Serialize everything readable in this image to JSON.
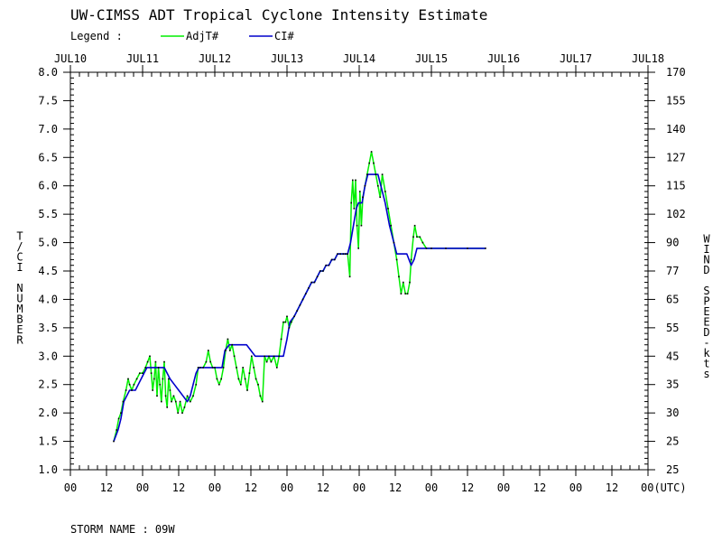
{
  "chart_data": {
    "type": "line",
    "title": "UW-CIMSS ADT Tropical Cyclone Intensity Estimate",
    "legend_label": "Legend :",
    "ylabel": "T/CI NUMBER",
    "ylabel_right": "WIND SPEED-kts",
    "storm_label": "STORM NAME : 09W",
    "xlim": [
      0,
      8
    ],
    "ylim": [
      1.0,
      8.0
    ],
    "top_ticks": [
      "JUL10",
      "JUL11",
      "JUL12",
      "JUL13",
      "JUL14",
      "JUL15",
      "JUL16",
      "JUL17",
      "JUL18"
    ],
    "bottom_ticks": [
      "00",
      "12",
      "00",
      "12",
      "00",
      "12",
      "00",
      "12",
      "00",
      "12",
      "00",
      "12",
      "00",
      "12",
      "00",
      "12",
      "00(UTC)"
    ],
    "left_ticks": [
      "1.0",
      "1.5",
      "2.0",
      "2.5",
      "3.0",
      "3.5",
      "4.0",
      "4.5",
      "5.0",
      "5.5",
      "6.0",
      "6.5",
      "7.0",
      "7.5",
      "8.0"
    ],
    "right_ticks": [
      "25",
      "25",
      "30",
      "35",
      "45",
      "55",
      "65",
      "77",
      "90",
      "102",
      "115",
      "127",
      "140",
      "155",
      "170"
    ],
    "series": [
      {
        "name": "AdjT#",
        "color": "#00ee00",
        "points": [
          [
            0.6,
            1.5
          ],
          [
            0.64,
            1.7
          ],
          [
            0.67,
            1.9
          ],
          [
            0.7,
            2.0
          ],
          [
            0.73,
            2.2
          ],
          [
            0.77,
            2.4
          ],
          [
            0.8,
            2.6
          ],
          [
            0.82,
            2.5
          ],
          [
            0.85,
            2.4
          ],
          [
            0.88,
            2.5
          ],
          [
            0.92,
            2.6
          ],
          [
            0.96,
            2.7
          ],
          [
            1.0,
            2.7
          ],
          [
            1.04,
            2.8
          ],
          [
            1.07,
            2.9
          ],
          [
            1.1,
            3.0
          ],
          [
            1.12,
            2.7
          ],
          [
            1.14,
            2.4
          ],
          [
            1.16,
            2.6
          ],
          [
            1.18,
            2.9
          ],
          [
            1.2,
            2.3
          ],
          [
            1.22,
            2.8
          ],
          [
            1.24,
            2.5
          ],
          [
            1.26,
            2.2
          ],
          [
            1.28,
            2.6
          ],
          [
            1.3,
            2.9
          ],
          [
            1.32,
            2.3
          ],
          [
            1.34,
            2.1
          ],
          [
            1.36,
            2.6
          ],
          [
            1.38,
            2.4
          ],
          [
            1.4,
            2.2
          ],
          [
            1.43,
            2.3
          ],
          [
            1.46,
            2.2
          ],
          [
            1.49,
            2.0
          ],
          [
            1.52,
            2.2
          ],
          [
            1.55,
            2.0
          ],
          [
            1.58,
            2.1
          ],
          [
            1.62,
            2.3
          ],
          [
            1.66,
            2.2
          ],
          [
            1.7,
            2.3
          ],
          [
            1.74,
            2.5
          ],
          [
            1.77,
            2.8
          ],
          [
            1.8,
            2.8
          ],
          [
            1.84,
            2.8
          ],
          [
            1.88,
            2.9
          ],
          [
            1.91,
            3.1
          ],
          [
            1.94,
            2.9
          ],
          [
            1.97,
            2.8
          ],
          [
            2.0,
            2.8
          ],
          [
            2.03,
            2.6
          ],
          [
            2.06,
            2.5
          ],
          [
            2.09,
            2.6
          ],
          [
            2.12,
            2.8
          ],
          [
            2.15,
            3.1
          ],
          [
            2.18,
            3.3
          ],
          [
            2.21,
            3.1
          ],
          [
            2.24,
            3.2
          ],
          [
            2.27,
            3.0
          ],
          [
            2.3,
            2.8
          ],
          [
            2.33,
            2.6
          ],
          [
            2.36,
            2.5
          ],
          [
            2.39,
            2.8
          ],
          [
            2.42,
            2.6
          ],
          [
            2.45,
            2.4
          ],
          [
            2.48,
            2.7
          ],
          [
            2.51,
            3.0
          ],
          [
            2.54,
            2.8
          ],
          [
            2.57,
            2.6
          ],
          [
            2.6,
            2.5
          ],
          [
            2.63,
            2.3
          ],
          [
            2.66,
            2.2
          ],
          [
            2.69,
            3.0
          ],
          [
            2.72,
            2.9
          ],
          [
            2.75,
            3.0
          ],
          [
            2.78,
            2.9
          ],
          [
            2.82,
            3.0
          ],
          [
            2.86,
            2.8
          ],
          [
            2.89,
            3.0
          ],
          [
            2.92,
            3.3
          ],
          [
            2.95,
            3.6
          ],
          [
            2.98,
            3.6
          ],
          [
            3.0,
            3.7
          ],
          [
            3.03,
            3.5
          ],
          [
            3.06,
            3.6
          ],
          [
            3.1,
            3.7
          ],
          [
            3.14,
            3.8
          ],
          [
            3.18,
            3.9
          ],
          [
            3.22,
            4.0
          ],
          [
            3.26,
            4.1
          ],
          [
            3.3,
            4.2
          ],
          [
            3.34,
            4.3
          ],
          [
            3.38,
            4.3
          ],
          [
            3.42,
            4.4
          ],
          [
            3.46,
            4.5
          ],
          [
            3.5,
            4.5
          ],
          [
            3.54,
            4.6
          ],
          [
            3.58,
            4.6
          ],
          [
            3.62,
            4.7
          ],
          [
            3.66,
            4.7
          ],
          [
            3.7,
            4.8
          ],
          [
            3.74,
            4.8
          ],
          [
            3.78,
            4.8
          ],
          [
            3.81,
            4.8
          ],
          [
            3.84,
            4.8
          ],
          [
            3.87,
            4.4
          ],
          [
            3.89,
            5.7
          ],
          [
            3.91,
            6.1
          ],
          [
            3.93,
            5.6
          ],
          [
            3.95,
            6.1
          ],
          [
            3.97,
            5.3
          ],
          [
            3.99,
            4.9
          ],
          [
            4.01,
            5.9
          ],
          [
            4.03,
            5.3
          ],
          [
            4.05,
            5.8
          ],
          [
            4.08,
            6.0
          ],
          [
            4.11,
            6.2
          ],
          [
            4.14,
            6.4
          ],
          [
            4.17,
            6.6
          ],
          [
            4.2,
            6.4
          ],
          [
            4.23,
            6.2
          ],
          [
            4.26,
            6.0
          ],
          [
            4.29,
            5.8
          ],
          [
            4.32,
            6.2
          ],
          [
            4.36,
            5.9
          ],
          [
            4.4,
            5.6
          ],
          [
            4.44,
            5.3
          ],
          [
            4.48,
            5.0
          ],
          [
            4.52,
            4.7
          ],
          [
            4.55,
            4.4
          ],
          [
            4.58,
            4.1
          ],
          [
            4.61,
            4.3
          ],
          [
            4.64,
            4.1
          ],
          [
            4.67,
            4.1
          ],
          [
            4.7,
            4.3
          ],
          [
            4.72,
            4.7
          ],
          [
            4.75,
            5.1
          ],
          [
            4.77,
            5.3
          ],
          [
            4.8,
            5.1
          ],
          [
            4.84,
            5.1
          ],
          [
            4.88,
            5.0
          ],
          [
            4.93,
            4.9
          ],
          [
            5.0,
            4.9
          ],
          [
            5.2,
            4.9
          ],
          [
            5.5,
            4.9
          ],
          [
            5.75,
            4.9
          ]
        ]
      },
      {
        "name": "CI#",
        "color": "#0000cc",
        "points": [
          [
            0.6,
            1.5
          ],
          [
            0.63,
            1.6
          ],
          [
            0.66,
            1.7
          ],
          [
            0.7,
            1.9
          ],
          [
            0.74,
            2.2
          ],
          [
            0.78,
            2.3
          ],
          [
            0.82,
            2.4
          ],
          [
            0.9,
            2.4
          ],
          [
            0.94,
            2.5
          ],
          [
            0.98,
            2.6
          ],
          [
            1.02,
            2.7
          ],
          [
            1.06,
            2.8
          ],
          [
            1.1,
            2.8
          ],
          [
            1.3,
            2.8
          ],
          [
            1.34,
            2.7
          ],
          [
            1.38,
            2.6
          ],
          [
            1.44,
            2.5
          ],
          [
            1.5,
            2.4
          ],
          [
            1.56,
            2.3
          ],
          [
            1.62,
            2.2
          ],
          [
            1.66,
            2.3
          ],
          [
            1.7,
            2.5
          ],
          [
            1.74,
            2.7
          ],
          [
            1.78,
            2.8
          ],
          [
            2.1,
            2.8
          ],
          [
            2.14,
            3.1
          ],
          [
            2.2,
            3.2
          ],
          [
            2.44,
            3.2
          ],
          [
            2.5,
            3.1
          ],
          [
            2.56,
            3.0
          ],
          [
            2.6,
            3.0
          ],
          [
            2.95,
            3.0
          ],
          [
            3.0,
            3.3
          ],
          [
            3.04,
            3.6
          ],
          [
            3.1,
            3.7
          ],
          [
            3.14,
            3.8
          ],
          [
            3.18,
            3.9
          ],
          [
            3.22,
            4.0
          ],
          [
            3.26,
            4.1
          ],
          [
            3.3,
            4.2
          ],
          [
            3.34,
            4.3
          ],
          [
            3.38,
            4.3
          ],
          [
            3.42,
            4.4
          ],
          [
            3.46,
            4.5
          ],
          [
            3.5,
            4.5
          ],
          [
            3.54,
            4.6
          ],
          [
            3.58,
            4.6
          ],
          [
            3.62,
            4.7
          ],
          [
            3.66,
            4.7
          ],
          [
            3.7,
            4.8
          ],
          [
            3.84,
            4.8
          ],
          [
            3.88,
            5.0
          ],
          [
            3.92,
            5.3
          ],
          [
            3.96,
            5.6
          ],
          [
            3.99,
            5.7
          ],
          [
            4.04,
            5.7
          ],
          [
            4.08,
            6.0
          ],
          [
            4.12,
            6.2
          ],
          [
            4.26,
            6.2
          ],
          [
            4.3,
            6.0
          ],
          [
            4.36,
            5.7
          ],
          [
            4.42,
            5.3
          ],
          [
            4.48,
            5.0
          ],
          [
            4.52,
            4.8
          ],
          [
            4.56,
            4.8
          ],
          [
            4.62,
            4.8
          ],
          [
            4.66,
            4.8
          ],
          [
            4.72,
            4.6
          ],
          [
            4.76,
            4.7
          ],
          [
            4.8,
            4.9
          ],
          [
            4.85,
            4.9
          ],
          [
            5.2,
            4.9
          ],
          [
            5.5,
            4.9
          ],
          [
            5.75,
            4.9
          ]
        ]
      }
    ]
  }
}
